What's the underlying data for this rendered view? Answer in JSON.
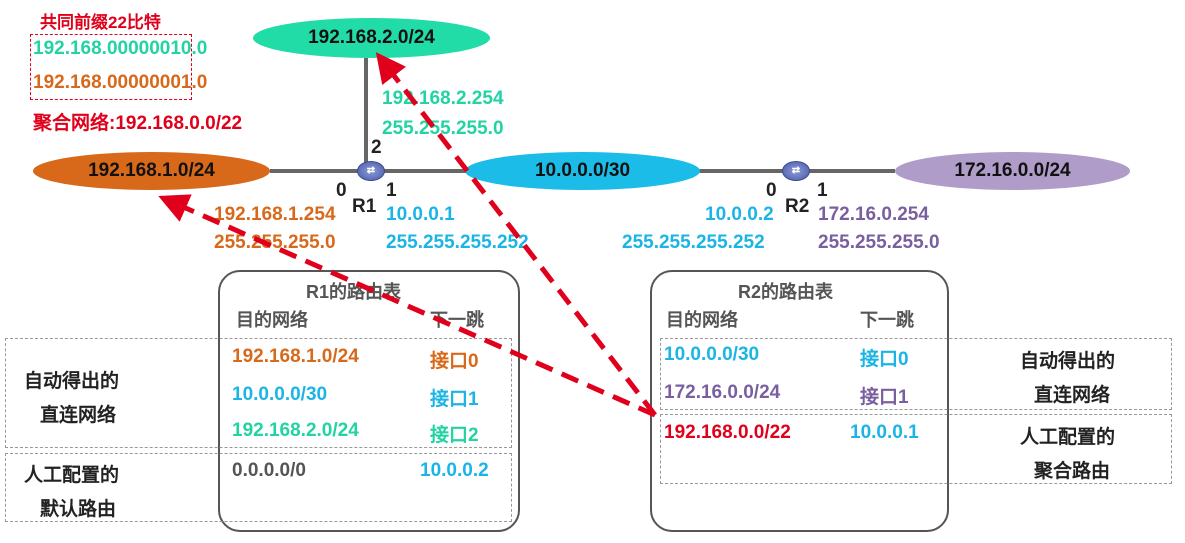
{
  "summary": {
    "title": "共同前缀22比特",
    "bin1": "192.168.00000010.0",
    "bin2": "192.168.00000001.0",
    "aggregate": "聚合网络:192.168.0.0/22"
  },
  "networks": {
    "n2": "192.168.2.0/24",
    "n1": "192.168.1.0/24",
    "n10": "10.0.0.0/30",
    "n172": "172.16.0.0/24"
  },
  "r1": {
    "name": "R1",
    "p0": "0",
    "p1": "1",
    "p2": "2",
    "if2_ip": "192.168.2.254",
    "if2_mask": "255.255.255.0",
    "if0_ip": "192.168.1.254",
    "if0_mask": "255.255.255.0",
    "if1_ip": "10.0.0.1",
    "if1_mask": "255.255.255.252"
  },
  "r2": {
    "name": "R2",
    "p0": "0",
    "p1": "1",
    "if0_ip": "10.0.0.2",
    "if0_mask": "255.255.255.252",
    "if1_ip": "172.16.0.254",
    "if1_mask": "255.255.255.0"
  },
  "r1_table": {
    "title": "R1的路由表",
    "col_dest": "目的网络",
    "col_next": "下一跳",
    "rows": [
      {
        "dest": "192.168.1.0/24",
        "next": "接口0"
      },
      {
        "dest": "10.0.0.0/30",
        "next": "接口1"
      },
      {
        "dest": "192.168.2.0/24",
        "next": "接口2"
      },
      {
        "dest": "0.0.0.0/0",
        "next": "10.0.0.2"
      }
    ]
  },
  "r2_table": {
    "title": "R2的路由表",
    "col_dest": "目的网络",
    "col_next": "下一跳",
    "rows": [
      {
        "dest": "10.0.0.0/30",
        "next": "接口0"
      },
      {
        "dest": "172.16.0.0/24",
        "next": "接口1"
      },
      {
        "dest": "192.168.0.0/22",
        "next": "10.0.0.1"
      }
    ]
  },
  "labels": {
    "left_direct_1": "自动得出的",
    "left_direct_2": "直连网络",
    "left_default_1": "人工配置的",
    "left_default_2": "默认路由",
    "right_direct_1": "自动得出的",
    "right_direct_2": "直连网络",
    "right_agg_1": "人工配置的",
    "right_agg_2": "聚合路由"
  }
}
